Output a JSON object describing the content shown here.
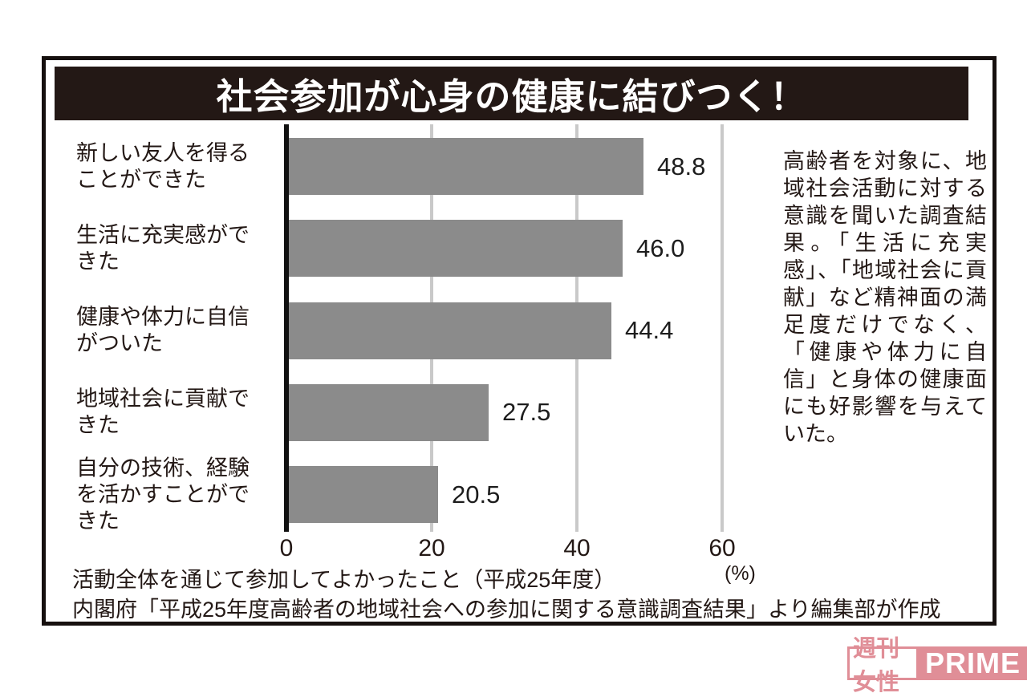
{
  "page": {
    "title_banner": "社会参加が心身の健康に結びつく！"
  },
  "chart_data": {
    "type": "bar",
    "orientation": "horizontal",
    "title": "社会参加が心身の健康に結びつく！",
    "categories": [
      "新しい友人を得ることができた",
      "生活に充実感ができた",
      "健康や体力に自信がついた",
      "地域社会に貢献できた",
      "自分の技術、経験を活かすことができた"
    ],
    "category_lines": [
      [
        "新しい友人を得る",
        "ことができた"
      ],
      [
        "生活に充実感がで",
        "きた"
      ],
      [
        "健康や体力に自信",
        "がついた"
      ],
      [
        "地域社会に貢献で",
        "きた"
      ],
      [
        "自分の技術、経験",
        "を活かすことがで",
        "きた"
      ]
    ],
    "values": [
      48.8,
      46.0,
      44.4,
      27.5,
      20.5
    ],
    "value_labels": [
      "48.8",
      "46.0",
      "44.4",
      "27.5",
      "20.5"
    ],
    "xlabel": "",
    "ylabel": "",
    "unit": "%",
    "axis_unit_label": "(%)",
    "xlim": [
      0,
      66
    ],
    "tick_values": [
      0,
      20,
      40,
      60
    ],
    "tick_labels": [
      "0",
      "20",
      "40",
      "60"
    ],
    "grid": true,
    "legend": false,
    "bar_color": "#8b8b8b",
    "grid_color": "#c9c9c9",
    "axis_color": "#111111"
  },
  "side_note": {
    "text": "高齢者を対象に、地域社会活動に対する意識を聞いた調査結果。「生活に充実感」、「地域社会に貢献」など精神面の満足度だけでなく、「健康や体力に自信」と身体の健康面にも好影響を与えていた。",
    "lines": [
      "高齢者を対象に、地",
      "域社会活動に対する",
      "意識を聞いた調査結",
      "果。「生活に充実",
      "感」、「地域社会に貢",
      "献」など精神面の満",
      "足度だけでなく、",
      "「健康や体力に自",
      "信」と身体の健康面",
      "にも好影響を与えて",
      "いた。"
    ]
  },
  "captions": {
    "line1": "活動全体を通じて参加してよかったこと（平成25年度）",
    "line2": "内閣府「平成25年度高齢者の地域社会への参加に関する意識調査結果」より編集部が作成"
  },
  "logo": {
    "jp": "週刊女性",
    "en": "PRIME",
    "color": "#e08e97"
  }
}
